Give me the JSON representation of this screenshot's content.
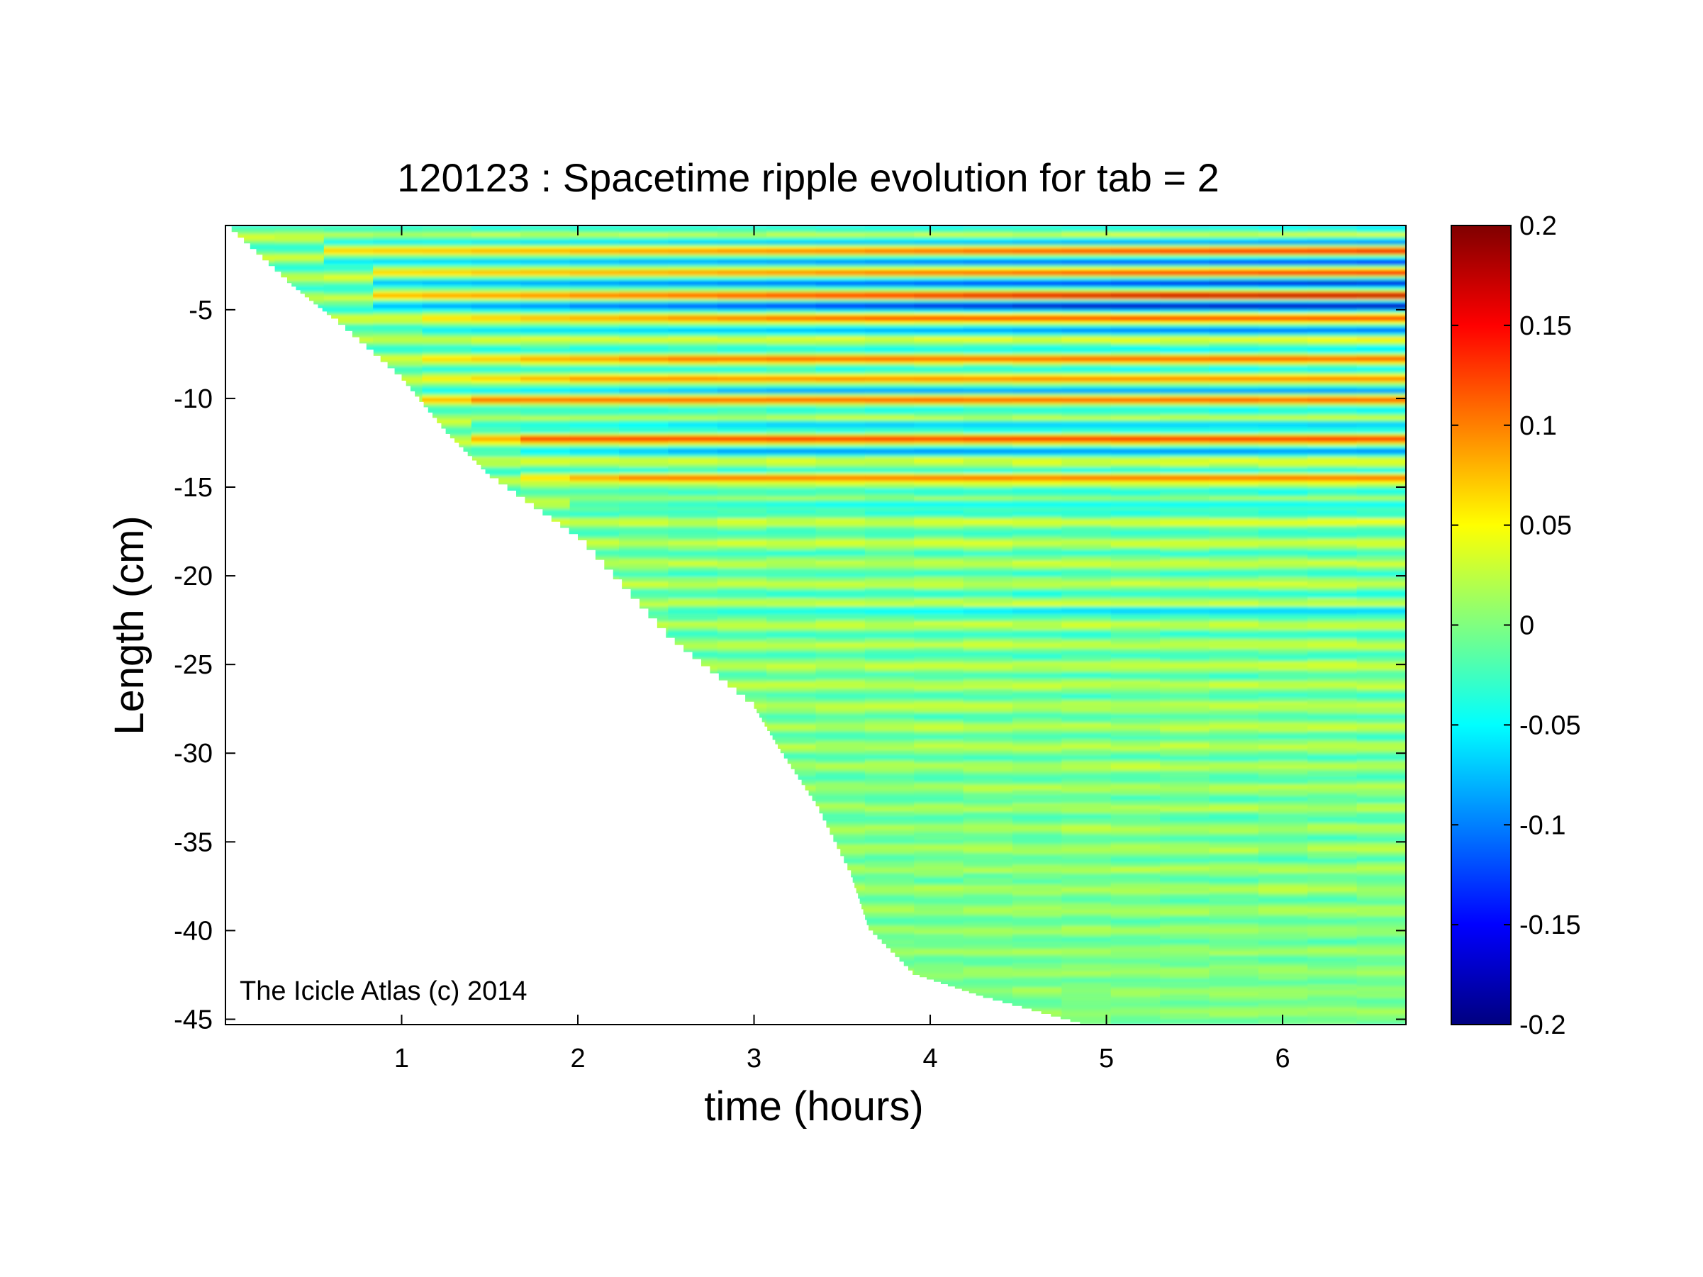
{
  "chart_data": {
    "type": "heatmap",
    "title": "120123 : Spacetime ripple evolution for tab = 2",
    "xlabel": "time (hours)",
    "ylabel": "Length (cm)",
    "xlim": [
      0,
      6.7
    ],
    "ylim": [
      -45.3,
      -0.25
    ],
    "x_ticks": [
      1,
      2,
      3,
      4,
      5,
      6
    ],
    "y_ticks": [
      -5,
      -10,
      -15,
      -20,
      -25,
      -30,
      -35,
      -40,
      -45
    ],
    "colorbar": {
      "colormap": "jet",
      "clim": [
        -0.2,
        0.2
      ],
      "ticks": [
        0.2,
        0.15,
        0.1,
        0.05,
        0,
        -0.05,
        -0.1,
        -0.15,
        -0.2
      ],
      "tick_labels": [
        "0.2",
        "0.15",
        "0.1",
        "0.05",
        "0",
        "-0.05",
        "-0.1",
        "-0.15",
        "-0.2"
      ]
    },
    "grid": false,
    "annotation": "The Icicle Atlas (c) 2014",
    "icicle_tip_boundary": [
      {
        "t": 0.0,
        "length": -0.3
      },
      {
        "t": 0.35,
        "length": -3.5
      },
      {
        "t": 0.6,
        "length": -5.5
      },
      {
        "t": 1.0,
        "length": -9.0
      },
      {
        "t": 1.25,
        "length": -12.0
      },
      {
        "t": 1.5,
        "length": -14.5
      },
      {
        "t": 2.0,
        "length": -18.0
      },
      {
        "t": 2.5,
        "length": -23.5
      },
      {
        "t": 3.0,
        "length": -27.5
      },
      {
        "t": 3.15,
        "length": -30.0
      },
      {
        "t": 3.35,
        "length": -33.0
      },
      {
        "t": 3.55,
        "length": -37.0
      },
      {
        "t": 3.65,
        "length": -40.0
      },
      {
        "t": 3.9,
        "length": -42.5
      },
      {
        "t": 4.3,
        "length": -43.8
      },
      {
        "t": 4.85,
        "length": -45.3
      }
    ],
    "ripple_bands": [
      {
        "length": -1.2,
        "value": -0.12,
        "t_start": 0.3,
        "t_peak": 6.7
      },
      {
        "length": -1.7,
        "value": 0.18,
        "t_start": 0.4,
        "t_peak": 6.6
      },
      {
        "length": -2.3,
        "value": -0.16,
        "t_start": 0.5,
        "t_peak": 6.5
      },
      {
        "length": -2.9,
        "value": 0.16,
        "t_start": 0.6,
        "t_peak": 6.3
      },
      {
        "length": -3.5,
        "value": -0.18,
        "t_start": 0.6,
        "t_peak": 5.9
      },
      {
        "length": -4.2,
        "value": 0.19,
        "t_start": 0.7,
        "t_peak": 5.2
      },
      {
        "length": -4.8,
        "value": -0.19,
        "t_start": 0.8,
        "t_peak": 4.7
      },
      {
        "length": -5.5,
        "value": 0.13,
        "t_start": 0.9,
        "t_peak": 3.5
      },
      {
        "length": -6.2,
        "value": -0.11,
        "t_start": 1.0,
        "t_peak": 5.5
      },
      {
        "length": -7.8,
        "value": 0.12,
        "t_start": 0.9,
        "t_peak": 2.5
      },
      {
        "length": -8.9,
        "value": 0.1,
        "t_start": 1.0,
        "t_peak": 2.0
      },
      {
        "length": -9.6,
        "value": -0.09,
        "t_start": 1.0,
        "t_peak": 3.0
      },
      {
        "length": -10.1,
        "value": 0.12,
        "t_start": 1.0,
        "t_peak": 1.3
      },
      {
        "length": -11.5,
        "value": -0.09,
        "t_start": 1.2,
        "t_peak": 3.0
      },
      {
        "length": -12.3,
        "value": 0.15,
        "t_start": 1.3,
        "t_peak": 1.5
      },
      {
        "length": -13.0,
        "value": -0.1,
        "t_start": 1.4,
        "t_peak": 2.8
      },
      {
        "length": -14.5,
        "value": 0.12,
        "t_start": 1.5,
        "t_peak": 2.2
      },
      {
        "length": -16.0,
        "value": -0.07,
        "t_start": 1.7,
        "t_peak": 3.5
      },
      {
        "length": -22.0,
        "value": -0.08,
        "t_start": 2.4,
        "t_peak": 5.0
      }
    ]
  }
}
